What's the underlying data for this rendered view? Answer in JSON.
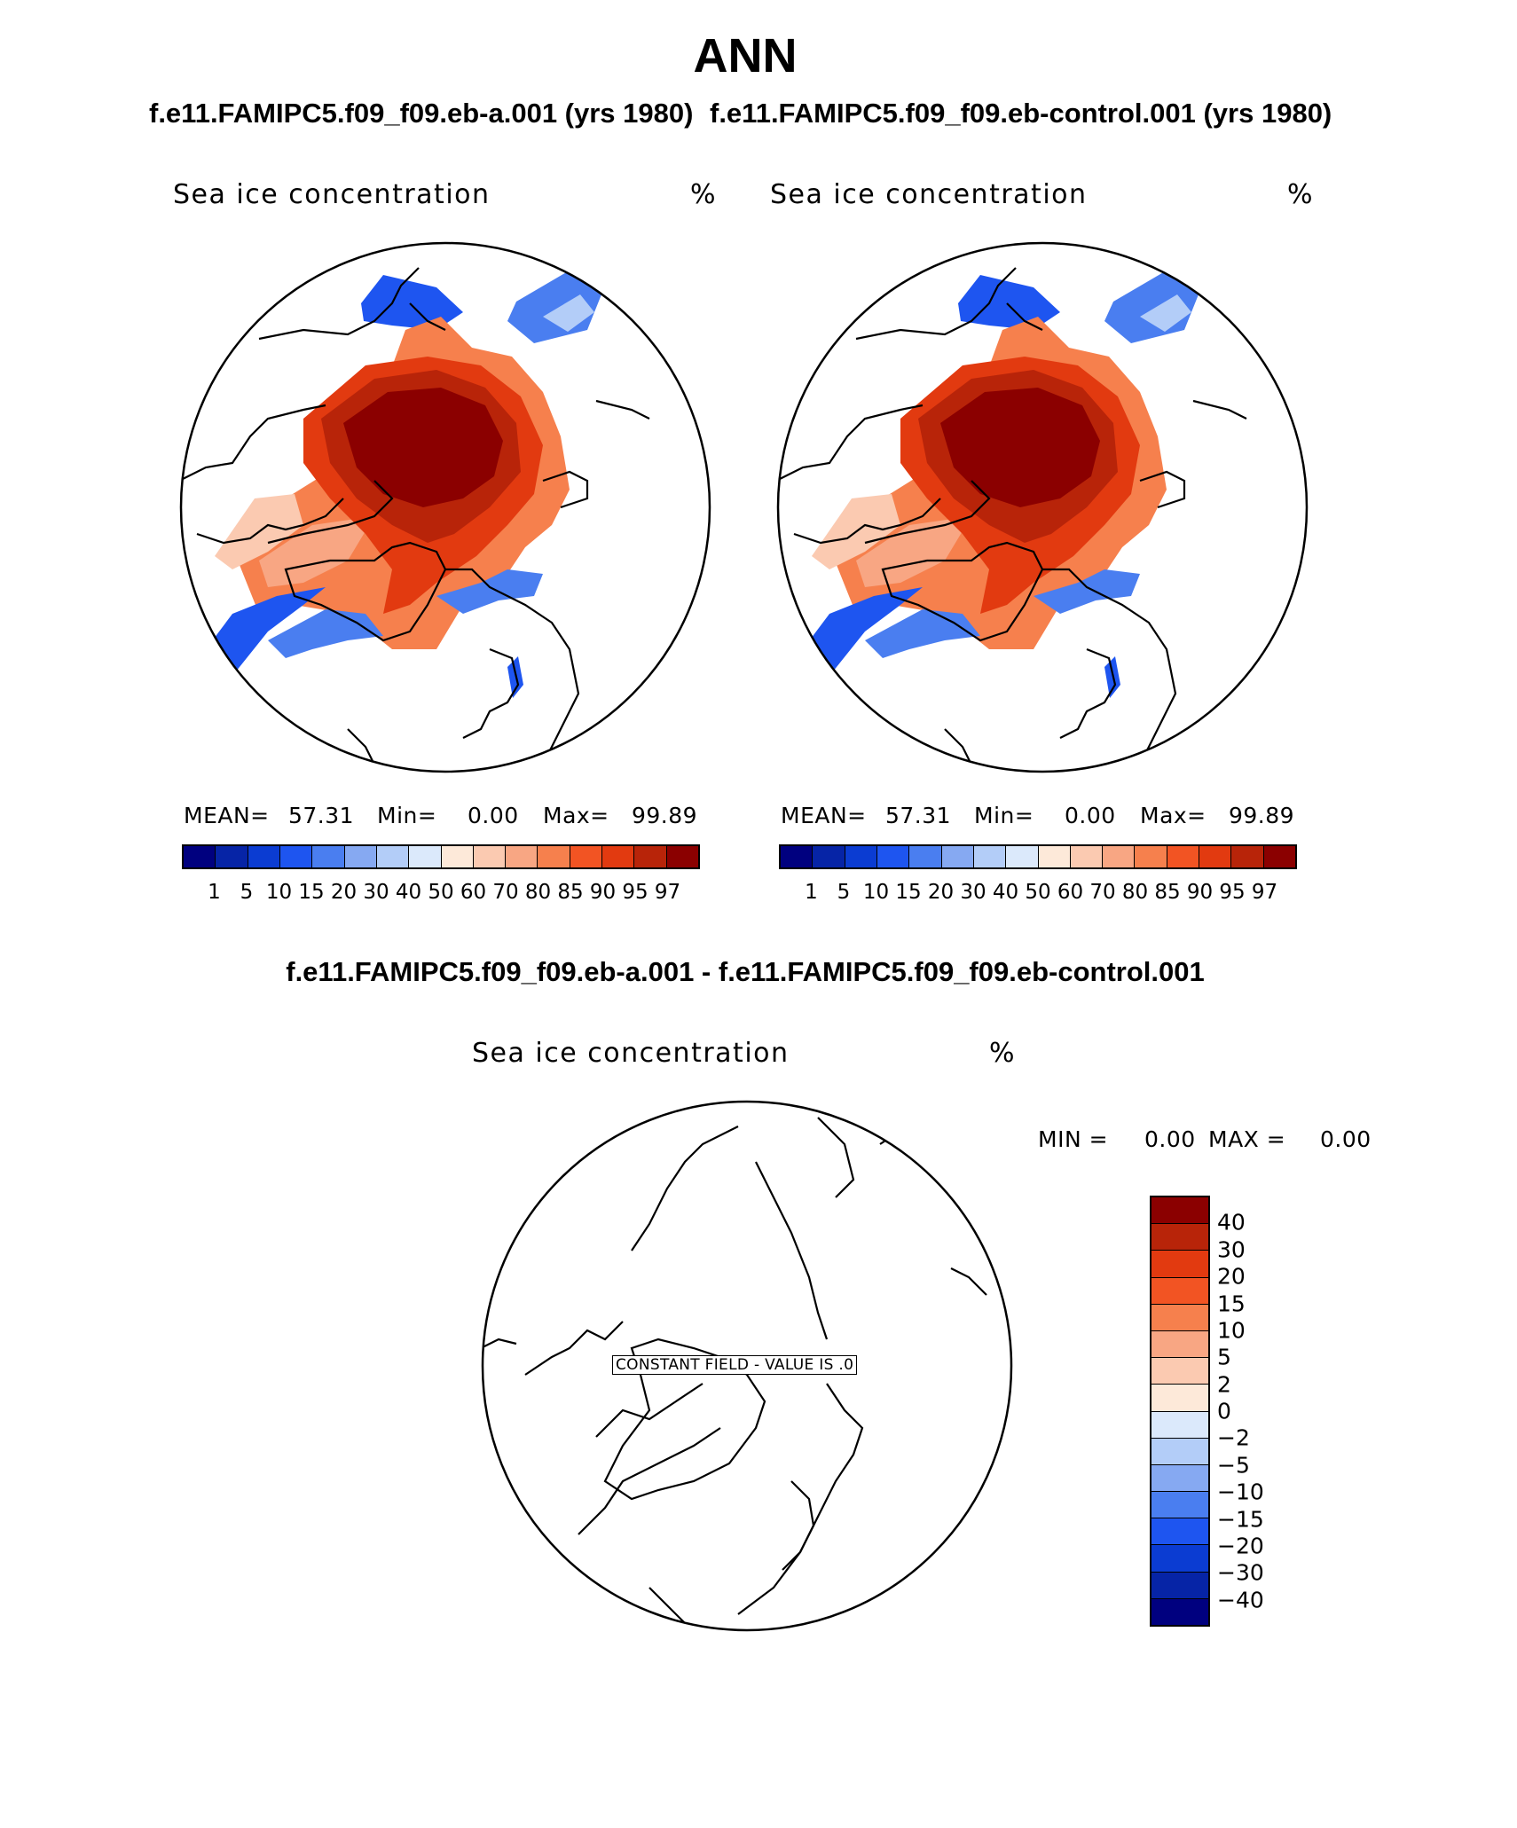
{
  "figure": {
    "title": "ANN",
    "subtitle_left": "f.e11.FAMIPC5.f09_f09.eb-a.001 (yrs 1980)",
    "subtitle_right": "f.e11.FAMIPC5.f09_f09.eb-control.001 (yrs 1980)",
    "diff_title": "f.e11.FAMIPC5.f09_f09.eb-a.001 - f.e11.FAMIPC5.f09_f09.eb-control.001"
  },
  "panels": [
    {
      "variable": "Sea ice concentration",
      "unit": "%",
      "mean_label": "MEAN=",
      "mean_value": "57.31",
      "min_label": "Min=",
      "min_value": "0.00",
      "max_label": "Max=",
      "max_value": "99.89"
    },
    {
      "variable": "Sea ice concentration",
      "unit": "%",
      "mean_label": "MEAN=",
      "mean_value": "57.31",
      "min_label": "Min=",
      "min_value": "0.00",
      "max_label": "Max=",
      "max_value": "99.89"
    }
  ],
  "diff_panel": {
    "variable": "Sea ice concentration",
    "unit": "%",
    "min_label": "MIN =",
    "min_value": "0.00",
    "max_label": "MAX =",
    "max_value": "0.00",
    "constant_field_label": "CONSTANT FIELD - VALUE IS .0"
  },
  "abs_colorbar": {
    "ticks": [
      "1",
      "5",
      "10",
      "15",
      "20",
      "30",
      "40",
      "50",
      "60",
      "70",
      "80",
      "85",
      "90",
      "95",
      "97"
    ],
    "colors": [
      "#00007f",
      "#0624a6",
      "#0b3cd2",
      "#1e55f0",
      "#4a7ef0",
      "#86a9f2",
      "#b3cdf8",
      "#dbe9fb",
      "#fde9d9",
      "#fbcab1",
      "#f8a683",
      "#f6804d",
      "#f25423",
      "#e23a10",
      "#b82409",
      "#8b0000"
    ]
  },
  "diff_colorbar": {
    "ticks": [
      "40",
      "30",
      "20",
      "15",
      "10",
      "5",
      "2",
      "0",
      "−2",
      "−5",
      "−10",
      "−15",
      "−20",
      "−30",
      "−40"
    ],
    "colors": [
      "#8b0000",
      "#b82409",
      "#e23a10",
      "#f25423",
      "#f6804d",
      "#f8a683",
      "#fbcab1",
      "#fde9d9",
      "#dbe9fb",
      "#b3cdf8",
      "#86a9f2",
      "#4a7ef0",
      "#1e55f0",
      "#0b3cd2",
      "#0624a6",
      "#00007f"
    ]
  }
}
